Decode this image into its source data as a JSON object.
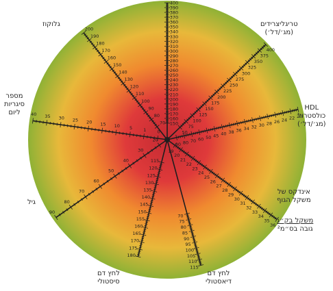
{
  "colors": {
    "outer": "#8fb236",
    "mid": "#e8b83a",
    "orange": "#f08a2f",
    "inner": "#df3a3a",
    "core": "#c42a33",
    "line": "#1e1e1e",
    "label": "#2a2a2a"
  },
  "labels": {
    "glucose": {
      "l1": "גלוקוז"
    },
    "triglycerides": {
      "l1": "טריגליצרידים",
      "l2": "(מג׳/דל׳)"
    },
    "hdl": {
      "l1": "HDL",
      "l2": "כולסטרול",
      "l3": "(מג׳/דל׳)"
    },
    "bmi": {
      "l1": "אינדקס של",
      "l2": "משקל הגוף"
    },
    "bmi_formula": {
      "l1": "משקל בק״ג",
      "l2": "גובה בס״מ²"
    },
    "diastolic": {
      "l1": "לחץ דם",
      "l2": "דיאסטולי"
    },
    "systolic": {
      "l1": "לחץ דם",
      "l2": "סיסטולי"
    },
    "age": {
      "l1": "גיל"
    },
    "cigarettes": {
      "l1": "מספר",
      "l2": "סיגריות",
      "l3": "ליום"
    }
  },
  "axes": [
    {
      "id": "total-cholesterol",
      "ticks": [
        "150",
        "160",
        "170",
        "180",
        "190",
        "200",
        "210",
        "220",
        "230",
        "240",
        "250",
        "260",
        "270",
        "280",
        "290",
        "300",
        "310",
        "320",
        "330",
        "340",
        "350",
        "360",
        "370",
        "380",
        "390",
        "400"
      ]
    },
    {
      "id": "triglycerides",
      "ticks": [
        "50",
        "75",
        "100",
        "125",
        "150",
        "175",
        "200",
        "225",
        "250",
        "275",
        "300",
        "325",
        "350",
        "375",
        "400"
      ]
    },
    {
      "id": "hdl",
      "ticks": [
        "90",
        "80",
        "70",
        "60",
        "50",
        "45",
        "40",
        "38",
        "36",
        "34",
        "32",
        "30",
        "28",
        "26",
        "24",
        "22",
        "20"
      ]
    },
    {
      "id": "bmi",
      "ticks": [
        "19",
        "20",
        "21",
        "22",
        "23",
        "24",
        "25",
        "26",
        "27",
        "28",
        "29",
        "30",
        "31",
        "32",
        "33",
        "34",
        "35",
        "36"
      ]
    },
    {
      "id": "diastolic",
      "ticks": [
        "70",
        "75",
        "80",
        "85",
        "90",
        "95",
        "100",
        "105",
        "110",
        "115"
      ]
    },
    {
      "id": "systolic",
      "ticks": [
        "115",
        "120",
        "125",
        "130",
        "135",
        "140",
        "145",
        "150",
        "155",
        "160",
        "165",
        "170",
        "175",
        "180"
      ]
    },
    {
      "id": "age",
      "ticks": [
        "20",
        "30",
        "40",
        "50",
        "60",
        "70",
        "80",
        "90"
      ]
    },
    {
      "id": "cigarettes",
      "ticks": [
        "0",
        "1",
        "5",
        "10",
        "15",
        "20",
        "25",
        "30",
        "35",
        "40"
      ]
    },
    {
      "id": "glucose",
      "ticks": [
        "70",
        "80",
        "90",
        "100",
        "110",
        "120",
        "130",
        "140",
        "150",
        "160",
        "170",
        "180",
        "190",
        "200"
      ]
    }
  ]
}
